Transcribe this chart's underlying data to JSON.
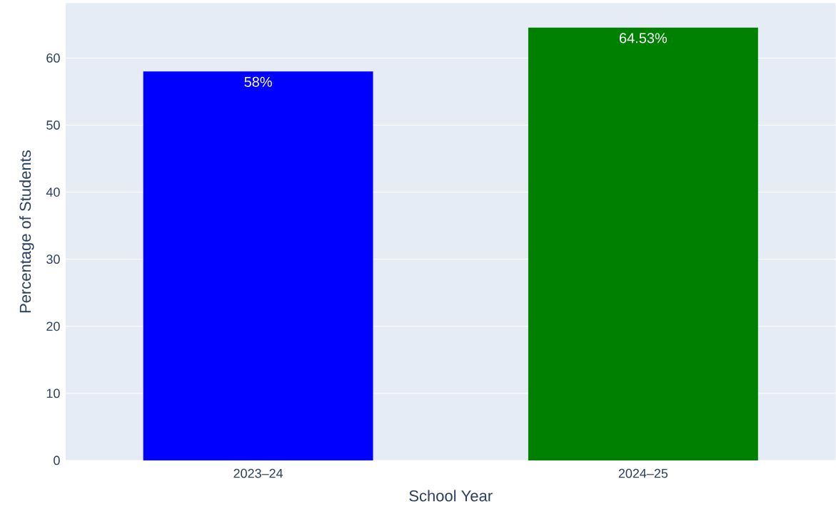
{
  "chart_data": {
    "type": "bar",
    "xlabel": "School Year",
    "ylabel": "Percentage of Students",
    "categories": [
      "2023–24",
      "2024–25"
    ],
    "values": [
      58,
      64.53
    ],
    "colors": [
      "#0000ff",
      "#008000"
    ],
    "value_labels": [
      "58%",
      "64.53%"
    ],
    "ylim": [
      0,
      68.2
    ],
    "yticks": [
      0,
      10,
      20,
      30,
      40,
      50,
      60
    ],
    "grid": "y"
  }
}
